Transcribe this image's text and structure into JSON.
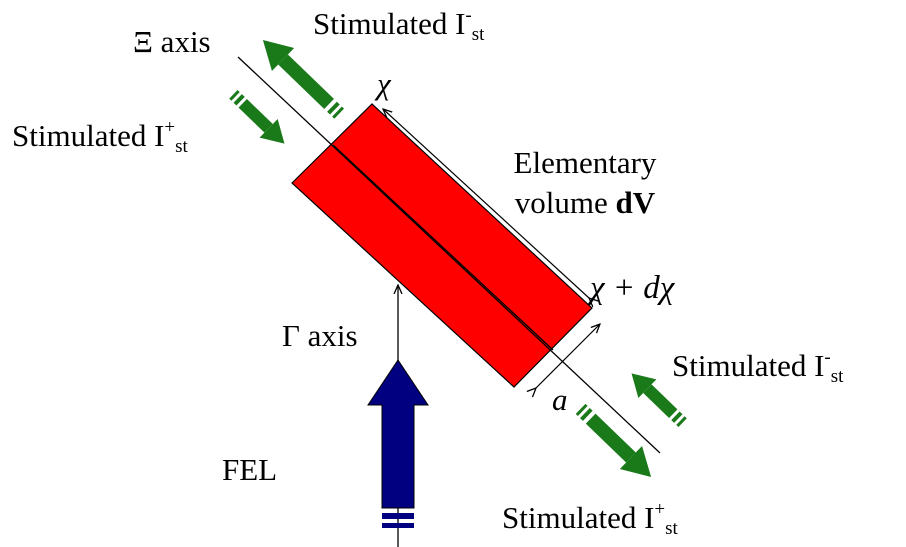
{
  "labels": {
    "xi_axis": "Ξ axis",
    "gamma_axis": "Γ axis",
    "fel": "FEL",
    "chi": "χ",
    "chi_plus": "χ + dχ",
    "a": "a",
    "elementary_line1": "Elementary",
    "elementary_line2": "volume",
    "elementary_bold": "dV",
    "stim_base": "Stimulated I",
    "minus": "-",
    "plus": "+",
    "st": "st"
  },
  "colors": {
    "volume_fill": "#ff0000",
    "green_arrow": "#1a7a1a",
    "blue_arrow": "#000080"
  }
}
